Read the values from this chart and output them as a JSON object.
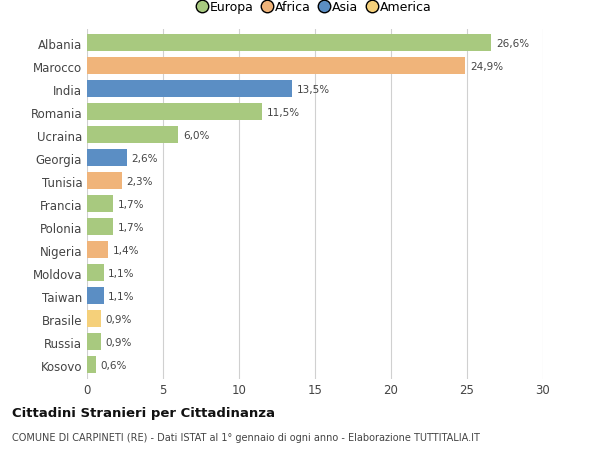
{
  "countries": [
    "Albania",
    "Marocco",
    "India",
    "Romania",
    "Ucraina",
    "Georgia",
    "Tunisia",
    "Francia",
    "Polonia",
    "Nigeria",
    "Moldova",
    "Taiwan",
    "Brasile",
    "Russia",
    "Kosovo"
  ],
  "values": [
    26.6,
    24.9,
    13.5,
    11.5,
    6.0,
    2.6,
    2.3,
    1.7,
    1.7,
    1.4,
    1.1,
    1.1,
    0.9,
    0.9,
    0.6
  ],
  "labels": [
    "26,6%",
    "24,9%",
    "13,5%",
    "11,5%",
    "6,0%",
    "2,6%",
    "2,3%",
    "1,7%",
    "1,7%",
    "1,4%",
    "1,1%",
    "1,1%",
    "0,9%",
    "0,9%",
    "0,6%"
  ],
  "colors": [
    "#a8c97f",
    "#f0b47a",
    "#5b8ec4",
    "#a8c97f",
    "#a8c97f",
    "#5b8ec4",
    "#f0b47a",
    "#a8c97f",
    "#a8c97f",
    "#f0b47a",
    "#a8c97f",
    "#5b8ec4",
    "#f5d07a",
    "#a8c97f",
    "#a8c97f"
  ],
  "legend": [
    {
      "label": "Europa",
      "color": "#a8c97f"
    },
    {
      "label": "Africa",
      "color": "#f0b47a"
    },
    {
      "label": "Asia",
      "color": "#5b8ec4"
    },
    {
      "label": "America",
      "color": "#f5d07a"
    }
  ],
  "title": "Cittadini Stranieri per Cittadinanza",
  "subtitle": "COMUNE DI CARPINETI (RE) - Dati ISTAT al 1° gennaio di ogni anno - Elaborazione TUTTITALIA.IT",
  "xlim": [
    0,
    30
  ],
  "xticks": [
    0,
    5,
    10,
    15,
    20,
    25,
    30
  ],
  "background_color": "#ffffff",
  "grid_color": "#d0d0d0"
}
